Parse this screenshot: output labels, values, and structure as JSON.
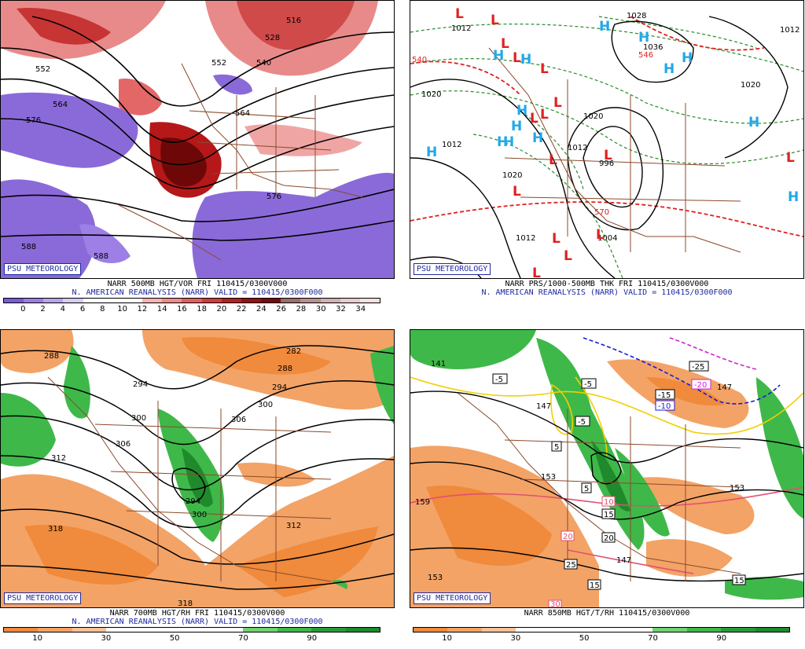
{
  "panels": [
    {
      "id": "vort500",
      "badge": "PSU METEOROLOGY",
      "caption_line1": "NARR 500MB HGT/VOR FRI 110415/0300V000",
      "caption_line2": "N. AMERICAN REANALYSIS (NARR) VALID = 110415/0300F000",
      "colorbar": {
        "colors": [
          "#7b5bd6",
          "#9a7fe0",
          "#b9a4ea",
          "#d8ccf3",
          "#ffffff",
          "#ffffff",
          "#ffffff",
          "#f6b3b3",
          "#ee8a8a",
          "#e35f5f",
          "#d23b3b",
          "#b61f1f",
          "#971010",
          "#7a0a0a",
          "#9b6d6d",
          "#b98e8e",
          "#d3b0b0",
          "#e8cccc",
          "#f3e0e0"
        ],
        "ticks": [
          "0",
          "2",
          "4",
          "6",
          "8",
          "10",
          "12",
          "14",
          "16",
          "18",
          "20",
          "22",
          "24",
          "26",
          "28",
          "30",
          "32",
          "34"
        ]
      },
      "contour_labels": [
        "516",
        "528",
        "540",
        "552",
        "564",
        "576",
        "564",
        "552",
        "576",
        "588",
        "588"
      ]
    },
    {
      "id": "mslp",
      "badge": "PSU METEOROLOGY",
      "caption_line1": "NARR PRS/1000-500MB THK FRI 110415/0300V000",
      "caption_line2": "N. AMERICAN REANALYSIS (NARR) VALID = 110415/0300F000",
      "pressure_labels": [
        "1012",
        "1028",
        "1036",
        "1020",
        "1020",
        "1012",
        "1020",
        "1012",
        "1004",
        "1012",
        "1020",
        "996",
        "540",
        "570",
        "546",
        "1012"
      ],
      "highs": 14,
      "lows": 16
    },
    {
      "id": "rh700",
      "badge": "PSU METEOROLOGY",
      "caption_line1": "NARR 700MB HGT/RH FRI 110415/0300V000",
      "caption_line2": "N. AMERICAN REANALYSIS (NARR) VALID = 110415/0300F000",
      "colorbar": {
        "colors": [
          "#f08a3c",
          "#f3a366",
          "#f7c197",
          "#ffffff",
          "#ffffff",
          "#ffffff",
          "#ffffff",
          "#6fd36f",
          "#3fb84a",
          "#2a9a38",
          "#1f8a2c"
        ],
        "ticks": [
          "10",
          "30",
          "50",
          "70",
          "90"
        ]
      },
      "contour_labels": [
        "288",
        "282",
        "288",
        "294",
        "294",
        "300",
        "306",
        "300",
        "306",
        "312",
        "294",
        "300",
        "312",
        "318",
        "318"
      ]
    },
    {
      "id": "t850",
      "badge": "PSU METEOROLOGY",
      "caption_line1": "NARR 850MB HGT/T/RH 110415/0300V000",
      "caption_line2": "",
      "colorbar": {
        "colors": [
          "#f08a3c",
          "#f3a366",
          "#f7c197",
          "#ffffff",
          "#ffffff",
          "#ffffff",
          "#ffffff",
          "#6fd36f",
          "#3fb84a",
          "#2a9a38",
          "#1f8a2c"
        ],
        "ticks": [
          "10",
          "30",
          "50",
          "70",
          "90"
        ]
      },
      "temp_labels": [
        "-25",
        "-20",
        "-15",
        "-10",
        "-5",
        "-5",
        "-5",
        "5",
        "5",
        "10",
        "15",
        "20",
        "25",
        "15",
        "15",
        "20",
        "30"
      ],
      "height_labels": [
        "141",
        "147",
        "147",
        "153",
        "159",
        "153",
        "153",
        "147"
      ]
    }
  ]
}
